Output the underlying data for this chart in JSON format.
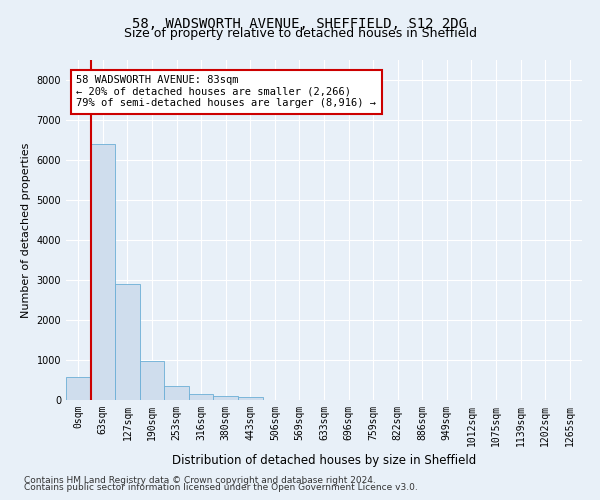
{
  "title_line1": "58, WADSWORTH AVENUE, SHEFFIELD, S12 2DG",
  "title_line2": "Size of property relative to detached houses in Sheffield",
  "xlabel": "Distribution of detached houses by size in Sheffield",
  "ylabel": "Number of detached properties",
  "bar_values": [
    580,
    6400,
    2900,
    980,
    350,
    160,
    100,
    70,
    0,
    0,
    0,
    0,
    0,
    0,
    0,
    0,
    0,
    0,
    0,
    0,
    0
  ],
  "bar_labels": [
    "0sqm",
    "63sqm",
    "127sqm",
    "190sqm",
    "253sqm",
    "316sqm",
    "380sqm",
    "443sqm",
    "506sqm",
    "569sqm",
    "633sqm",
    "696sqm",
    "759sqm",
    "822sqm",
    "886sqm",
    "949sqm",
    "1012sqm",
    "1075sqm",
    "1139sqm",
    "1202sqm",
    "1265sqm"
  ],
  "bar_color": "#cfdded",
  "bar_edge_color": "#6baed6",
  "vline_color": "#cc0000",
  "ylim": [
    0,
    8500
  ],
  "yticks": [
    0,
    1000,
    2000,
    3000,
    4000,
    5000,
    6000,
    7000,
    8000
  ],
  "annotation_text": "58 WADSWORTH AVENUE: 83sqm\n← 20% of detached houses are smaller (2,266)\n79% of semi-detached houses are larger (8,916) →",
  "annotation_box_color": "#cc0000",
  "footer_line1": "Contains HM Land Registry data © Crown copyright and database right 2024.",
  "footer_line2": "Contains public sector information licensed under the Open Government Licence v3.0.",
  "bg_color": "#e8f0f8",
  "plot_bg_color": "#e8f0f8",
  "grid_color": "#ffffff",
  "title1_fontsize": 10,
  "title2_fontsize": 9,
  "xlabel_fontsize": 8.5,
  "ylabel_fontsize": 8,
  "tick_fontsize": 7,
  "footer_fontsize": 6.5,
  "annotation_fontsize": 7.5
}
